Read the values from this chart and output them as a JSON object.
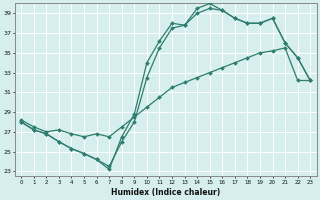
{
  "xlabel": "Humidex (Indice chaleur)",
  "ylabel": "",
  "xlim": [
    -0.5,
    23.5
  ],
  "ylim": [
    22.5,
    40.0
  ],
  "xticks": [
    0,
    1,
    2,
    3,
    4,
    5,
    6,
    7,
    8,
    9,
    10,
    11,
    12,
    13,
    14,
    15,
    16,
    17,
    18,
    19,
    20,
    21,
    22,
    23
  ],
  "yticks": [
    23,
    25,
    27,
    29,
    31,
    33,
    35,
    37,
    39
  ],
  "bg_color": "#d6eeee",
  "line_color": "#2e7d6e",
  "grid_color": "#ffffff",
  "series1_x": [
    0,
    1,
    2,
    3,
    4,
    5,
    6,
    7,
    8,
    9,
    10,
    11,
    12,
    13,
    14,
    15,
    16,
    17,
    18,
    19,
    20,
    21,
    22,
    23
  ],
  "series1_y": [
    28.0,
    27.2,
    26.8,
    26.0,
    25.3,
    24.8,
    24.2,
    23.2,
    26.5,
    28.8,
    34.0,
    36.2,
    38.0,
    37.8,
    39.5,
    40.0,
    39.3,
    38.5,
    38.0,
    38.0,
    38.5,
    36.0,
    34.5,
    32.2
  ],
  "series2_x": [
    0,
    1,
    2,
    3,
    4,
    5,
    6,
    7,
    8,
    9,
    10,
    11,
    12,
    13,
    14,
    15,
    16,
    17,
    18,
    19,
    20,
    21,
    22,
    23
  ],
  "series2_y": [
    28.0,
    27.2,
    26.8,
    26.0,
    25.3,
    24.8,
    24.2,
    23.5,
    26.0,
    28.0,
    32.5,
    35.5,
    37.5,
    37.8,
    39.0,
    39.5,
    39.3,
    38.5,
    38.0,
    38.0,
    38.5,
    36.0,
    34.5,
    32.2
  ],
  "series3_x": [
    0,
    1,
    2,
    3,
    4,
    5,
    6,
    7,
    8,
    9,
    10,
    11,
    12,
    13,
    14,
    15,
    16,
    17,
    18,
    19,
    20,
    21,
    22,
    23
  ],
  "series3_y": [
    28.2,
    27.5,
    27.0,
    27.2,
    26.8,
    26.5,
    26.8,
    26.5,
    27.5,
    28.5,
    29.5,
    30.5,
    31.5,
    32.0,
    32.5,
    33.0,
    33.5,
    34.0,
    34.5,
    35.0,
    35.2,
    35.5,
    32.2,
    32.2
  ]
}
